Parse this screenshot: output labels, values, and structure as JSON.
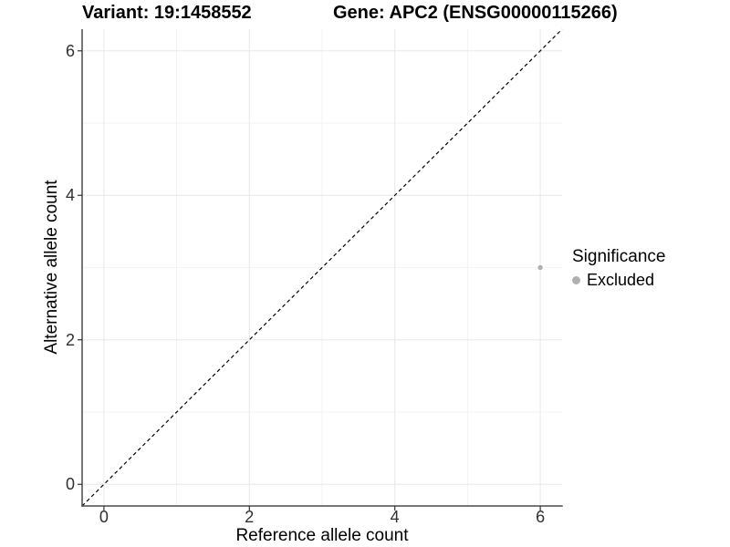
{
  "titles": {
    "variant": "Variant: 19:1458552",
    "gene": "Gene: APC2 (ENSG00000115266)"
  },
  "legend": {
    "title": "Significance",
    "items": [
      {
        "label": "Excluded",
        "color": "#b0b0b0"
      }
    ]
  },
  "colors": {
    "background": "#ffffff",
    "grid_major": "#e8e8e8",
    "grid_minor": "#f3f3f3",
    "axis_line": "#4a4a4a",
    "tick": "#333333",
    "tick_label": "#303030",
    "title_text": "#000000"
  },
  "chart_data": {
    "type": "scatter",
    "title": "Variant: 19:1458552   Gene: APC2 (ENSG00000115266)",
    "xlabel": "Reference allele count",
    "ylabel": "Alternative allele count",
    "xlim": [
      -0.3,
      6.3
    ],
    "ylim": [
      -0.3,
      6.3
    ],
    "x_ticks": [
      0,
      2,
      4,
      6
    ],
    "y_ticks": [
      0,
      2,
      4,
      6
    ],
    "x_minor_ticks": [
      1,
      3,
      5
    ],
    "y_minor_ticks": [
      1,
      3,
      5
    ],
    "grid": true,
    "legend_position": "right",
    "series": [
      {
        "name": "Excluded",
        "color": "#b0b0b0",
        "points": [
          {
            "x": 6,
            "y": 3
          }
        ]
      }
    ],
    "reference_line": {
      "equation": "y = x",
      "style": "dashed",
      "color": "#000000",
      "from": [
        -0.3,
        -0.3
      ],
      "to": [
        6.3,
        6.3
      ]
    }
  }
}
